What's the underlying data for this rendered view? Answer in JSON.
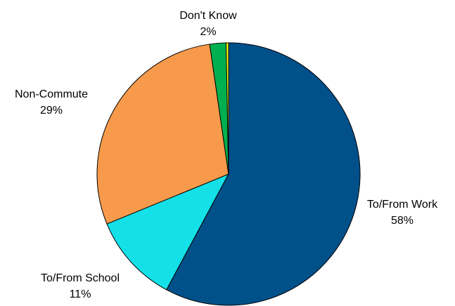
{
  "chart_data": {
    "type": "pie",
    "slices": [
      {
        "label": "To/From Work",
        "percent_label": "58%",
        "value": 58,
        "color": "#00508a"
      },
      {
        "label": "To/From School",
        "percent_label": "11%",
        "value": 11,
        "color": "#14e0e8"
      },
      {
        "label": "Non-Commute",
        "percent_label": "29%",
        "value": 29,
        "color": "#f79a4b"
      },
      {
        "label": "Don't Know",
        "percent_label": "2%",
        "value": 2,
        "color": "#00b050"
      },
      {
        "label": "",
        "percent_label": "",
        "value": 0.3,
        "color": "#ffff00"
      }
    ]
  }
}
